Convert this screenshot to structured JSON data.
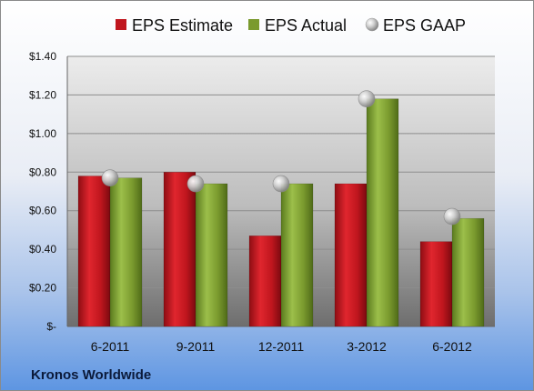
{
  "chart_data": {
    "type": "bar",
    "categories": [
      "6-2011",
      "9-2011",
      "12-2011",
      "3-2012",
      "6-2012"
    ],
    "series": [
      {
        "name": "EPS Estimate",
        "values": [
          0.78,
          0.8,
          0.47,
          0.74,
          0.44
        ],
        "color": "#c0161e"
      },
      {
        "name": "EPS Actual",
        "values": [
          0.77,
          0.74,
          0.74,
          1.18,
          0.56
        ],
        "color": "#7a9a2e"
      },
      {
        "name": "EPS GAAP",
        "values": [
          0.77,
          0.74,
          0.74,
          1.18,
          0.57
        ],
        "color": "#b8b8b8",
        "marker": "sphere"
      }
    ],
    "y_ticks": [
      "$-",
      "$0.20",
      "$0.40",
      "$0.60",
      "$0.80",
      "$1.00",
      "$1.20",
      "$1.40"
    ],
    "ylim": [
      0,
      1.4
    ],
    "grid": true,
    "legend_position": "top"
  },
  "company": "Kronos Worldwide"
}
